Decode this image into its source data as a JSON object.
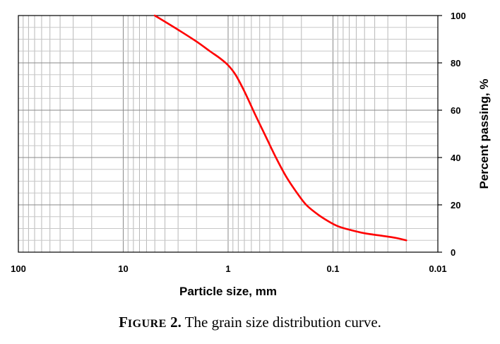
{
  "caption": {
    "figure_word_first": "F",
    "figure_word_rest": "IGURE",
    "figure_number": " 2.",
    "text": " The grain size distribution curve."
  },
  "chart_data": {
    "type": "line",
    "xlabel": "Particle size, mm",
    "ylabel": "Percent passing, %",
    "x_scale": "log",
    "x_reversed": true,
    "xlim": [
      100,
      0.01
    ],
    "ylim": [
      0,
      100
    ],
    "x_ticks": [
      "100",
      "10",
      "1",
      "0.1",
      "0.01"
    ],
    "y_ticks": [
      "0",
      "20",
      "40",
      "60",
      "80",
      "100"
    ],
    "grid": true,
    "line_color": "#ff0000",
    "series": [
      {
        "x": [
          5,
          3,
          2,
          1.5,
          1.2,
          1.0,
          0.85,
          0.7,
          0.55,
          0.45,
          0.35,
          0.28,
          0.22,
          0.18,
          0.14,
          0.11,
          0.09,
          0.07,
          0.05,
          0.035,
          0.025,
          0.02
        ],
        "y": [
          100,
          94,
          89,
          85,
          82,
          79,
          75,
          68,
          58,
          50,
          40,
          32,
          25,
          20,
          16,
          13,
          11,
          9.5,
          8,
          7,
          6,
          5
        ]
      }
    ]
  }
}
